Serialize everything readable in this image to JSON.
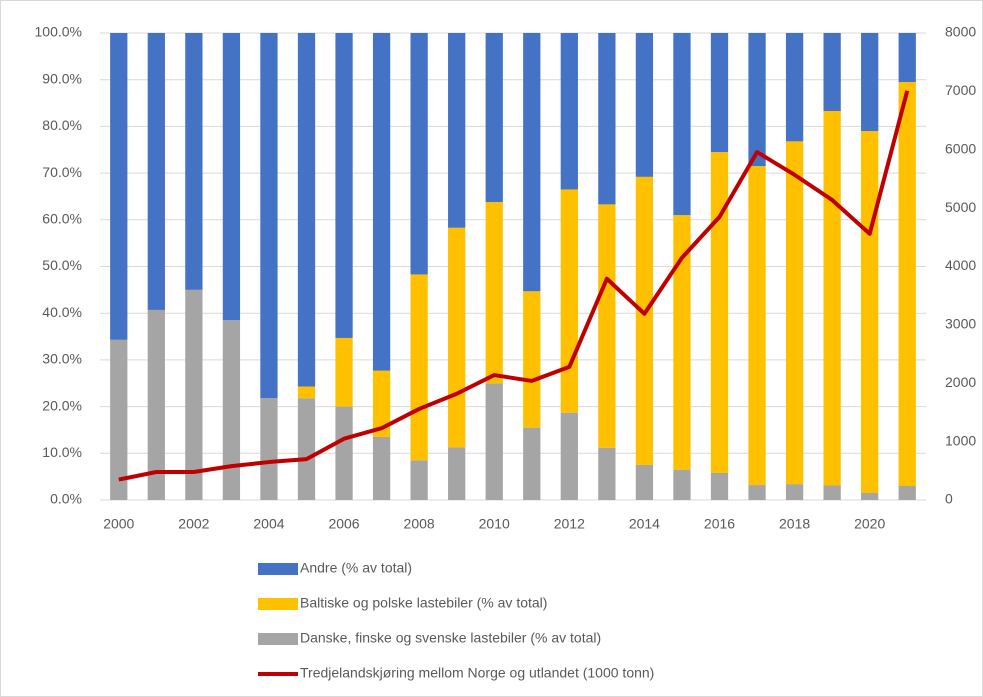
{
  "chart_data": {
    "type": "bar",
    "stacked": true,
    "categories": [
      "2000",
      null,
      "2002",
      null,
      "2004",
      null,
      "2006",
      null,
      "2008",
      null,
      "2010",
      null,
      "2012",
      null,
      "2014",
      null,
      "2016",
      null,
      "2018",
      null,
      "2020",
      null
    ],
    "series": [
      {
        "name": "Andre (% av total)",
        "type": "bar",
        "color": "#4472c4",
        "values": [
          65.7,
          59.3,
          55.0,
          61.5,
          78.2,
          75.7,
          65.3,
          72.3,
          51.7,
          41.7,
          36.2,
          55.3,
          33.5,
          36.7,
          30.8,
          39.0,
          25.5,
          28.5,
          23.2,
          16.7,
          21.0,
          10.5
        ]
      },
      {
        "name": "Baltiske og polske lastebiler (% av total)",
        "type": "bar",
        "color": "#ffc000",
        "values": [
          0,
          0,
          0,
          0,
          0,
          2.5,
          14.7,
          14.2,
          39.8,
          47.0,
          38.8,
          29.2,
          47.8,
          52.1,
          61.7,
          54.5,
          68.7,
          68.3,
          73.4,
          80.2,
          77.5,
          86.5
        ]
      },
      {
        "name": "Danske, finske og svenske lastebiler (% av total)",
        "type": "bar",
        "color": "#a5a5a5",
        "values": [
          34.3,
          40.7,
          45.0,
          38.5,
          21.8,
          21.8,
          20.0,
          13.5,
          8.5,
          11.3,
          25.0,
          15.5,
          18.7,
          11.2,
          7.5,
          6.5,
          5.8,
          3.2,
          3.4,
          3.1,
          1.5,
          3.0
        ]
      },
      {
        "name": "Tredjelandskjøring mellom Norge og utlandet  (1000 tonn)",
        "type": "line",
        "axis": "y2",
        "color": "#c00000",
        "values": [
          350,
          480,
          480,
          580,
          650,
          700,
          1050,
          1230,
          1560,
          1820,
          2140,
          2040,
          2280,
          3790,
          3190,
          4150,
          4850,
          5960,
          5570,
          5140,
          4560,
          7010
        ]
      }
    ],
    "ylim": [
      0,
      100
    ],
    "yticks": [
      {
        "value": 0,
        "label": "0.0%"
      },
      {
        "value": 10,
        "label": "10.0%"
      },
      {
        "value": 20,
        "label": "20.0%"
      },
      {
        "value": 30,
        "label": "30.0%"
      },
      {
        "value": 40,
        "label": "40.0%"
      },
      {
        "value": 50,
        "label": "50.0%"
      },
      {
        "value": 60,
        "label": "60.0%"
      },
      {
        "value": 70,
        "label": "70.0%"
      },
      {
        "value": 80,
        "label": "80.0%"
      },
      {
        "value": 90,
        "label": "90.0%"
      },
      {
        "value": 100,
        "label": "100.0%"
      }
    ],
    "y2lim": [
      0,
      8000
    ],
    "y2ticks": [
      0,
      1000,
      2000,
      3000,
      4000,
      5000,
      6000,
      7000,
      8000
    ],
    "grid": true,
    "legend": "bottom"
  }
}
